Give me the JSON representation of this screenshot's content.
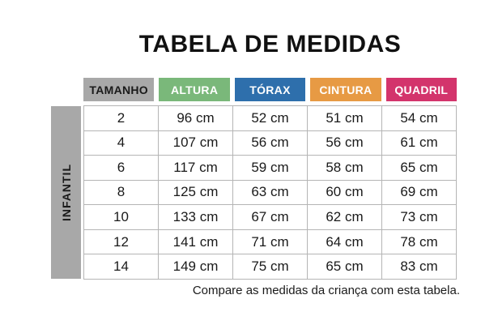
{
  "title": "TABELA DE MEDIDAS",
  "caption": "Compare as medidas da criança com esta tabela.",
  "side_label": "INFANTIL",
  "colors": {
    "side_label_bg": "#a8a8a8",
    "grid_border": "#b5b5b5",
    "header_tamanho_bg": "#a8a8a8",
    "header_altura_bg": "#7ab87a",
    "header_torax_bg": "#2e6fac",
    "header_cintura_bg": "#e79a44",
    "header_quadril_bg": "#d3346c"
  },
  "table": {
    "headers": [
      {
        "label": "TAMANHO",
        "bg": "#a8a8a8",
        "fg": "#1a1a1a"
      },
      {
        "label": "ALTURA",
        "bg": "#7ab87a",
        "fg": "#ffffff"
      },
      {
        "label": "TÓRAX",
        "bg": "#2e6fac",
        "fg": "#ffffff"
      },
      {
        "label": "CINTURA",
        "bg": "#e79a44",
        "fg": "#ffffff"
      },
      {
        "label": "QUADRIL",
        "bg": "#d3346c",
        "fg": "#ffffff"
      }
    ],
    "rows": [
      [
        "2",
        "96 cm",
        "52 cm",
        "51 cm",
        "54 cm"
      ],
      [
        "4",
        "107 cm",
        "56 cm",
        "56 cm",
        "61 cm"
      ],
      [
        "6",
        "117 cm",
        "59 cm",
        "58 cm",
        "65 cm"
      ],
      [
        "8",
        "125 cm",
        "63 cm",
        "60 cm",
        "69 cm"
      ],
      [
        "10",
        "133 cm",
        "67 cm",
        "62 cm",
        "73 cm"
      ],
      [
        "12",
        "141 cm",
        "71 cm",
        "64 cm",
        "78 cm"
      ],
      [
        "14",
        "149 cm",
        "75 cm",
        "65 cm",
        "83 cm"
      ]
    ]
  },
  "chart_data": {
    "type": "table",
    "title": "TABELA DE MEDIDAS",
    "columns": [
      "TAMANHO",
      "ALTURA",
      "TÓRAX",
      "CINTURA",
      "QUADRIL"
    ],
    "row_group_label": "INFANTIL",
    "rows": [
      [
        "2",
        "96 cm",
        "52 cm",
        "51 cm",
        "54 cm"
      ],
      [
        "4",
        "107 cm",
        "56 cm",
        "56 cm",
        "61 cm"
      ],
      [
        "6",
        "117 cm",
        "59 cm",
        "58 cm",
        "65 cm"
      ],
      [
        "8",
        "125 cm",
        "63 cm",
        "60 cm",
        "69 cm"
      ],
      [
        "10",
        "133 cm",
        "67 cm",
        "62 cm",
        "73 cm"
      ],
      [
        "12",
        "141 cm",
        "71 cm",
        "64 cm",
        "78 cm"
      ],
      [
        "14",
        "149 cm",
        "75 cm",
        "65 cm",
        "83 cm"
      ]
    ],
    "caption": "Compare as medidas da criança com esta tabela."
  }
}
